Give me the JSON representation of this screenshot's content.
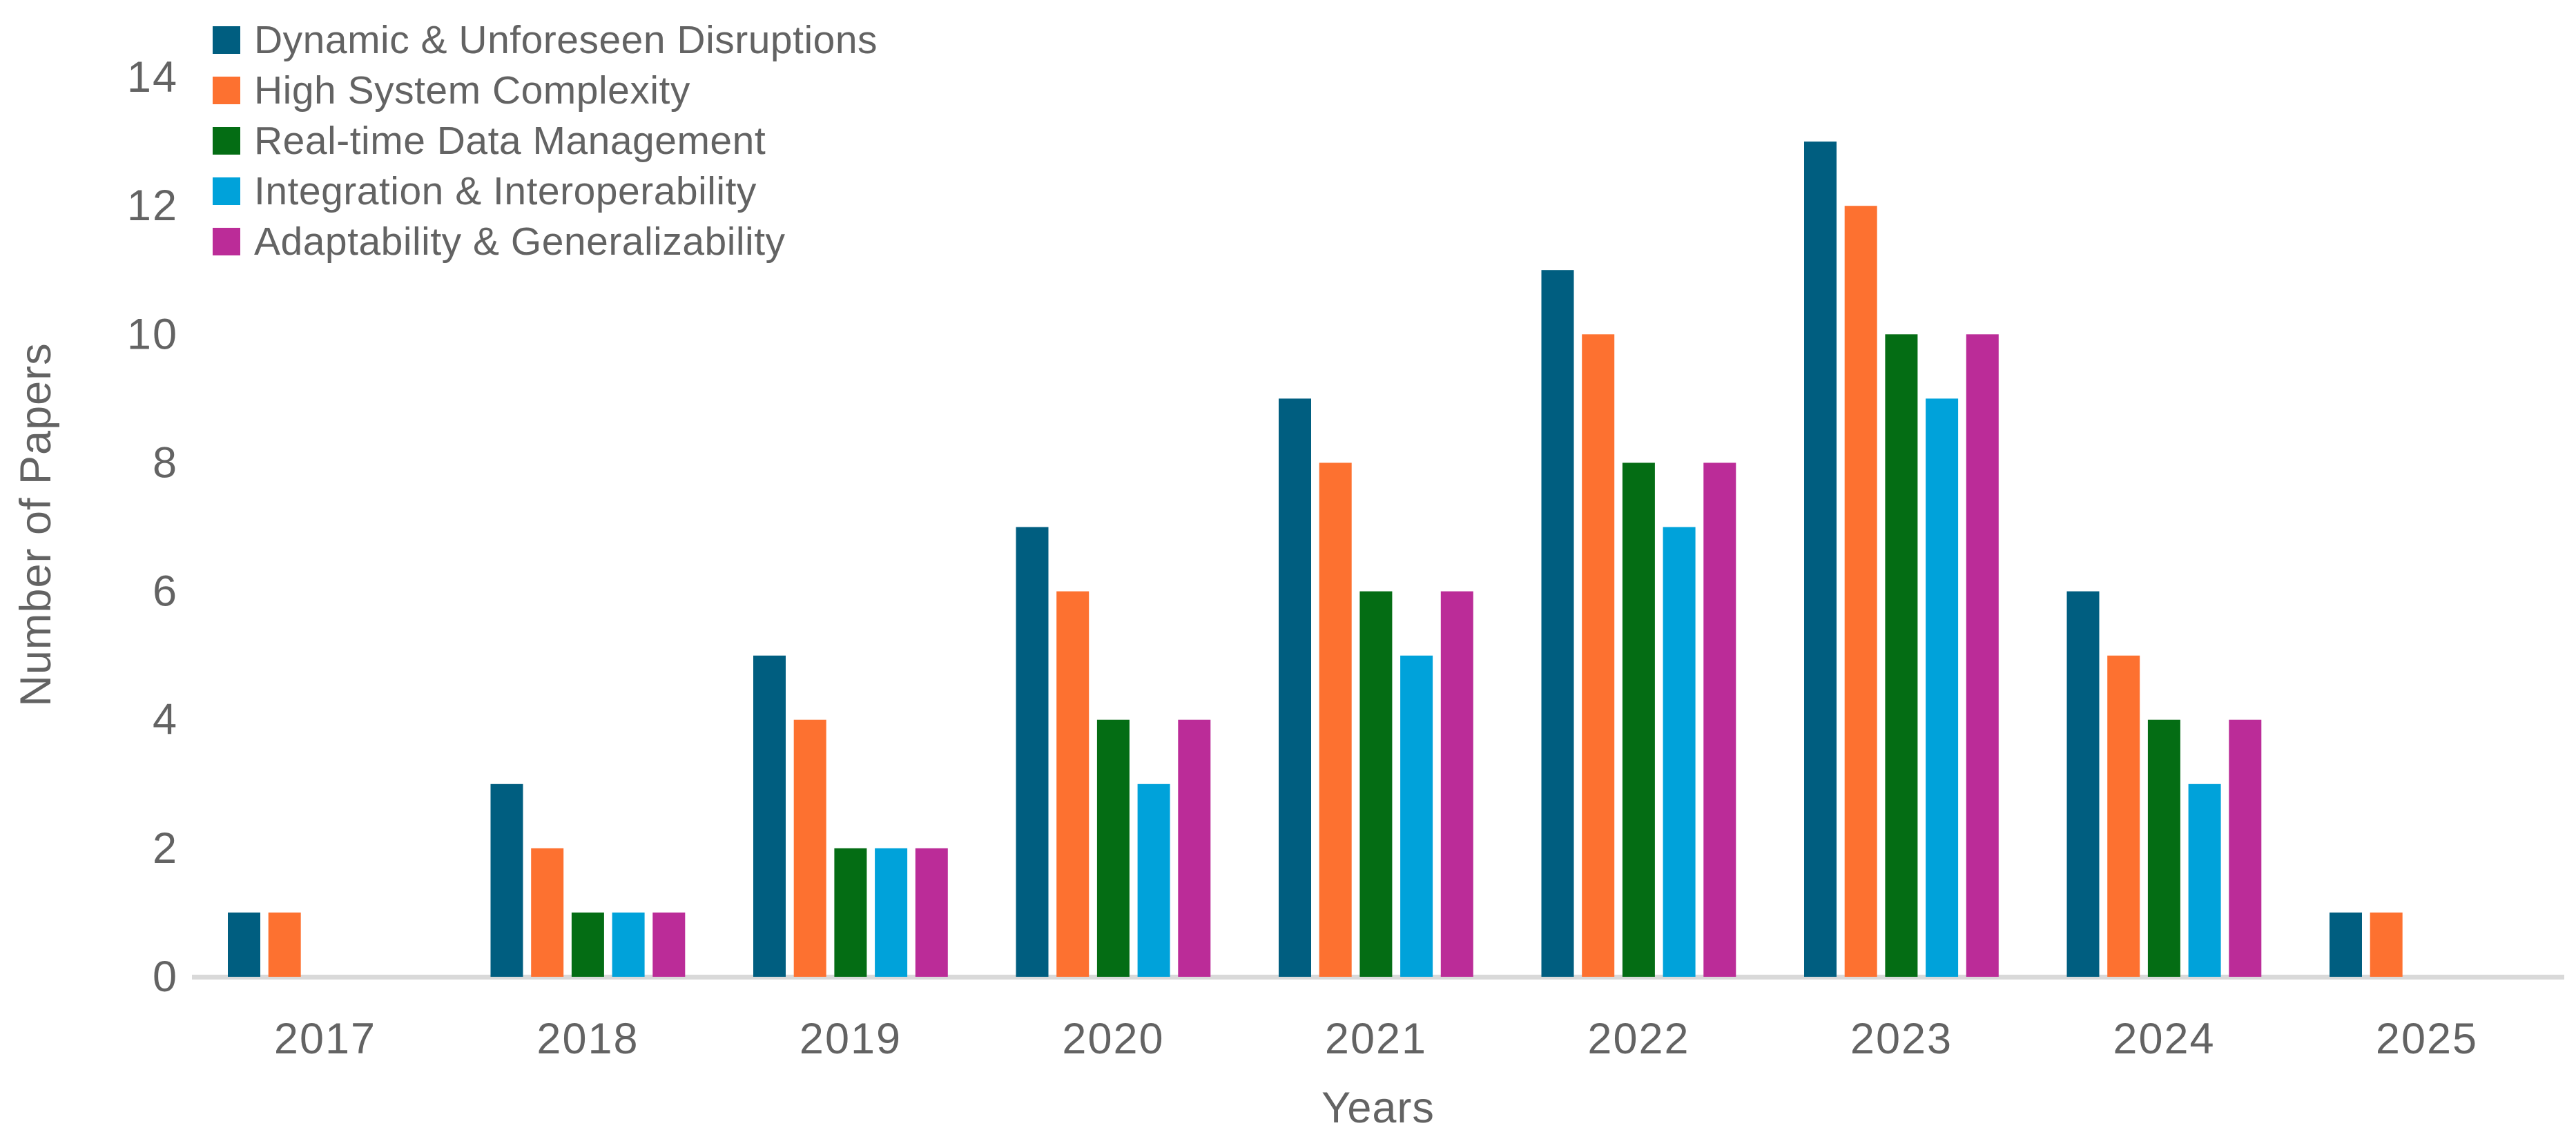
{
  "chart_data": {
    "type": "bar",
    "title": "",
    "xlabel": "Years",
    "ylabel": "Number of Papers",
    "categories": [
      "2017",
      "2018",
      "2019",
      "2020",
      "2021",
      "2022",
      "2023",
      "2024",
      "2025"
    ],
    "ylim": [
      0,
      14
    ],
    "yticks": [
      0,
      2,
      4,
      6,
      8,
      10,
      12,
      14
    ],
    "grid": false,
    "legend_position": "top-left",
    "series": [
      {
        "name": "Dynamic & Unforeseen Disruptions",
        "color": "#005E80",
        "values": [
          1,
          3,
          5,
          7,
          9,
          11,
          13,
          6,
          1
        ]
      },
      {
        "name": "High System Complexity",
        "color": "#FD7130",
        "values": [
          1,
          2,
          4,
          6,
          8,
          10,
          12,
          5,
          1
        ]
      },
      {
        "name": "Real-time Data Management",
        "color": "#046D14",
        "values": [
          0,
          1,
          2,
          4,
          6,
          8,
          10,
          4,
          0
        ]
      },
      {
        "name": "Integration & Interoperability",
        "color": "#00A2DA",
        "values": [
          0,
          1,
          2,
          3,
          5,
          7,
          9,
          3,
          0
        ]
      },
      {
        "name": "Adaptability & Generalizability",
        "color": "#BB2C98",
        "values": [
          0,
          1,
          2,
          4,
          6,
          8,
          10,
          4,
          0
        ]
      }
    ],
    "axis_line_color": "#D9D9D9",
    "text_color": "#636363"
  }
}
